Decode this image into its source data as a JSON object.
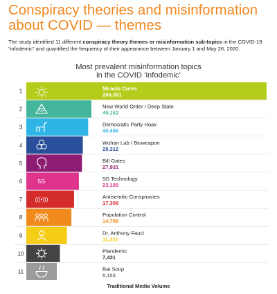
{
  "title_line1": "Conspiracy theories and misinformation",
  "title_line2": "about COVID — themes",
  "intro": {
    "part1": "The study identified 11 different ",
    "bold": "conspiracy theory themes or misinformation sub-topics",
    "part2": " in the COVID-19 “infodemic” and quantified the frequency of their appearance between  January 1 and May 26, 2020."
  },
  "chart_data": {
    "type": "bar",
    "orientation": "horizontal",
    "title_line1": "Most prevalent misinformation topics",
    "title_line2": "in the COVID ‘infodemic’",
    "xlabel": "Traditional Media Volume",
    "ylabel": "",
    "grid": false,
    "ranks": [
      "1",
      "2",
      "3",
      "4",
      "5",
      "6",
      "7",
      "8",
      "9",
      "10",
      "11"
    ],
    "categories": [
      "Miracle Cures",
      "New World Order / Deep State",
      "Democratic Party Hoax",
      "Wuhan Lab / Bioweapon",
      "Bill Gates",
      "5G Technology",
      "Antisemitic Conspiracies",
      "Population Control",
      "Dr. Anthony Fauci",
      "Plandemic",
      "Bat Soup"
    ],
    "values": [
      295351,
      49162,
      40456,
      29312,
      27931,
      23199,
      17358,
      14788,
      11321,
      7431,
      6163
    ],
    "value_labels": [
      "295,351",
      "49,162",
      "40,456",
      "29,312",
      "27,931",
      "23,199",
      "17,358",
      "14,788",
      "11,321",
      "7,431",
      "6,163"
    ],
    "colors": [
      "#b5cc1a",
      "#45b59b",
      "#2fb4e6",
      "#2a4f9a",
      "#8c1d72",
      "#e0338c",
      "#d42b2b",
      "#f08a1c",
      "#f5cc16",
      "#444444",
      "#9b9b9b"
    ],
    "value_label_colors": [
      "#ffffff",
      "#45b59b",
      "#2fb4e6",
      "#2a4f9a",
      "#8c1d72",
      "#e0338c",
      "#d42b2b",
      "#f08a1c",
      "#f5cc16",
      "#333333",
      "#777777"
    ],
    "icons": [
      "sparkle-icon",
      "eye-pyramid-icon",
      "donkey-icon",
      "biohazard-icon",
      "head-profile-icon",
      "5g-icon",
      "signal-waves-icon",
      "people-group-icon",
      "doctor-icon",
      "virus-icon",
      "bowl-icon"
    ],
    "icon_text": [
      "",
      "",
      "",
      "",
      "",
      "5G",
      "(((•)))",
      "",
      "",
      "",
      ""
    ],
    "scale_note": "First bar scaled to span full width"
  }
}
